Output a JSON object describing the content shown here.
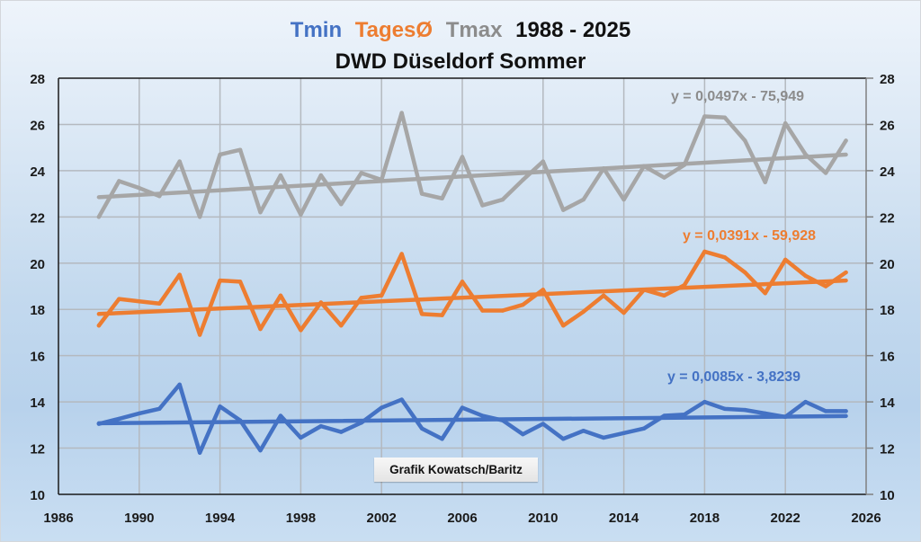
{
  "chart_data": {
    "type": "line",
    "title": {
      "segments": [
        {
          "text": "Tmin",
          "color": "#4472c4"
        },
        {
          "text": "TagesØ",
          "color": "#ed7d31"
        },
        {
          "text": "Tmax",
          "color": "#8c8c8c"
        },
        {
          "text": "1988 - 2025",
          "color": "#111111"
        }
      ],
      "subtitle": "DWD Düseldorf Sommer"
    },
    "xlabel": "",
    "ylabel": "",
    "xlim": [
      1986,
      2026
    ],
    "ylim": [
      10,
      28
    ],
    "x_ticks": [
      "1986",
      "1990",
      "1994",
      "1998",
      "2002",
      "2006",
      "2010",
      "2014",
      "2018",
      "2022",
      "2026"
    ],
    "y_ticks": [
      "10",
      "12",
      "14",
      "16",
      "18",
      "20",
      "22",
      "24",
      "26",
      "28"
    ],
    "grid": true,
    "legend": "none",
    "x": [
      1988,
      1989,
      1990,
      1991,
      1992,
      1993,
      1994,
      1995,
      1996,
      1997,
      1998,
      1999,
      2000,
      2001,
      2002,
      2003,
      2004,
      2005,
      2006,
      2007,
      2008,
      2009,
      2010,
      2011,
      2012,
      2013,
      2014,
      2015,
      2016,
      2017,
      2018,
      2019,
      2020,
      2021,
      2022,
      2023,
      2024,
      2025
    ],
    "series": [
      {
        "name": "Tmax",
        "color": "#a6a6a6",
        "values": [
          22.0,
          23.55,
          23.25,
          22.9,
          24.4,
          22.0,
          24.7,
          24.9,
          22.2,
          23.8,
          22.1,
          23.8,
          22.55,
          23.9,
          23.6,
          26.5,
          23.0,
          22.8,
          24.6,
          22.5,
          22.75,
          23.6,
          24.4,
          22.3,
          22.75,
          24.1,
          22.75,
          24.2,
          23.7,
          24.25,
          26.35,
          26.3,
          25.3,
          23.5,
          26.05,
          24.7,
          23.9,
          25.3
        ],
        "trend": {
          "slope": 0.0497,
          "intercept": -75.949,
          "label": "y = 0,0497x - 75,949",
          "label_color": "#8c8c8c"
        }
      },
      {
        "name": "TagesØ",
        "color": "#ed7d31",
        "values": [
          17.3,
          18.45,
          18.35,
          18.25,
          19.5,
          16.9,
          19.25,
          19.2,
          17.15,
          18.6,
          17.1,
          18.3,
          17.3,
          18.5,
          18.6,
          20.4,
          17.8,
          17.75,
          19.2,
          17.95,
          17.95,
          18.2,
          18.85,
          17.3,
          17.9,
          18.6,
          17.85,
          18.85,
          18.6,
          19.05,
          20.5,
          20.25,
          19.6,
          18.7,
          20.15,
          19.45,
          19.0,
          19.6
        ],
        "trend": {
          "slope": 0.0391,
          "intercept": -59.928,
          "label": "y = 0,0391x - 59,928",
          "label_color": "#ed7d31"
        }
      },
      {
        "name": "Tmin",
        "color": "#4472c4",
        "values": [
          13.05,
          13.27,
          13.5,
          13.7,
          14.75,
          11.8,
          13.8,
          13.2,
          11.9,
          13.4,
          12.45,
          12.95,
          12.7,
          13.1,
          13.75,
          14.1,
          12.85,
          12.4,
          13.75,
          13.4,
          13.2,
          12.6,
          13.05,
          12.4,
          12.75,
          12.45,
          12.65,
          12.85,
          13.4,
          13.45,
          14.0,
          13.7,
          13.65,
          13.5,
          13.35,
          14.0,
          13.6,
          13.6
        ],
        "trend": {
          "slope": 0.0085,
          "intercept": -3.8239,
          "label": "y = 0,0085x - 3,8239",
          "label_color": "#4472c4"
        }
      }
    ],
    "annotation": "Grafik Kowatsch/Baritz"
  }
}
